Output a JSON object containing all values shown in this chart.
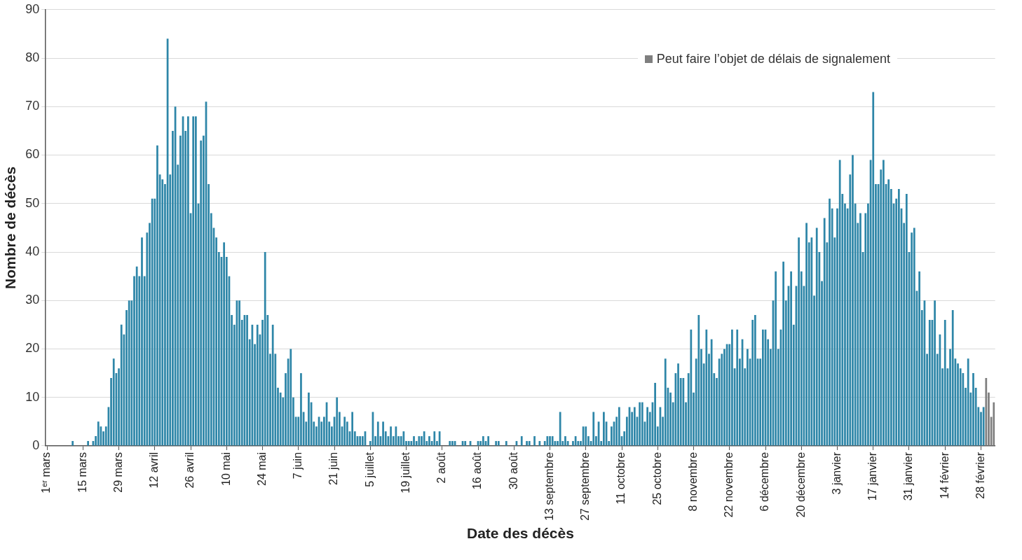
{
  "chart_data": {
    "type": "bar",
    "xlabel": "Date des décès",
    "ylabel": "Nombre de décès",
    "categories": [
      "1ᵉʳ mars",
      null,
      null,
      null,
      null,
      null,
      null,
      null,
      null,
      null,
      null,
      null,
      null,
      null,
      "15 mars",
      null,
      null,
      null,
      null,
      null,
      null,
      null,
      null,
      null,
      null,
      null,
      null,
      null,
      "29 mars",
      null,
      null,
      null,
      null,
      null,
      null,
      null,
      null,
      null,
      null,
      null,
      null,
      null,
      "12 avril",
      null,
      null,
      null,
      null,
      null,
      null,
      null,
      null,
      null,
      null,
      null,
      null,
      null,
      "26 avril",
      null,
      null,
      null,
      null,
      null,
      null,
      null,
      null,
      null,
      null,
      null,
      null,
      null,
      "10 mai",
      null,
      null,
      null,
      null,
      null,
      null,
      null,
      null,
      null,
      null,
      null,
      null,
      null,
      "24 mai",
      null,
      null,
      null,
      null,
      null,
      null,
      null,
      null,
      null,
      null,
      null,
      null,
      null,
      "7 juin",
      null,
      null,
      null,
      null,
      null,
      null,
      null,
      null,
      null,
      null,
      null,
      null,
      null,
      "21 juin",
      null,
      null,
      null,
      null,
      null,
      null,
      null,
      null,
      null,
      null,
      null,
      null,
      null,
      "5 juillet",
      null,
      null,
      null,
      null,
      null,
      null,
      null,
      null,
      null,
      null,
      null,
      null,
      null,
      "19 juillet",
      null,
      null,
      null,
      null,
      null,
      null,
      null,
      null,
      null,
      null,
      null,
      null,
      null,
      "2 août",
      null,
      null,
      null,
      null,
      null,
      null,
      null,
      null,
      null,
      null,
      null,
      null,
      null,
      "16 août",
      null,
      null,
      null,
      null,
      null,
      null,
      null,
      null,
      null,
      null,
      null,
      null,
      null,
      "30 août",
      null,
      null,
      null,
      null,
      null,
      null,
      null,
      null,
      null,
      null,
      null,
      null,
      null,
      "13 septembre",
      null,
      null,
      null,
      null,
      null,
      null,
      null,
      null,
      null,
      null,
      null,
      null,
      null,
      "27 septembre",
      null,
      null,
      null,
      null,
      null,
      null,
      null,
      null,
      null,
      null,
      null,
      null,
      null,
      "11 octobre",
      null,
      null,
      null,
      null,
      null,
      null,
      null,
      null,
      null,
      null,
      null,
      null,
      null,
      "25 octobre",
      null,
      null,
      null,
      null,
      null,
      null,
      null,
      null,
      null,
      null,
      null,
      null,
      null,
      "8 novembre",
      null,
      null,
      null,
      null,
      null,
      null,
      null,
      null,
      null,
      null,
      null,
      null,
      null,
      "22 novembre",
      null,
      null,
      null,
      null,
      null,
      null,
      null,
      null,
      null,
      null,
      null,
      null,
      null,
      "6 décembre",
      null,
      null,
      null,
      null,
      null,
      null,
      null,
      null,
      null,
      null,
      null,
      null,
      null,
      "20 décembre",
      null,
      null,
      null,
      null,
      null,
      null,
      null,
      null,
      null,
      null,
      null,
      null,
      null,
      "3 janvier",
      null,
      null,
      null,
      null,
      null,
      null,
      null,
      null,
      null,
      null,
      null,
      null,
      null,
      "17 janvier",
      null,
      null,
      null,
      null,
      null,
      null,
      null,
      null,
      null,
      null,
      null,
      null,
      null,
      "31 janvier",
      null,
      null,
      null,
      null,
      null,
      null,
      null,
      null,
      null,
      null,
      null,
      null,
      null,
      "14 février",
      null,
      null,
      null,
      null,
      null,
      null,
      null,
      null,
      null,
      null,
      null,
      null,
      null,
      "28 février",
      null,
      null,
      null,
      null,
      null
    ],
    "series": [
      {
        "color": "#2e86a8",
        "values": [
          0,
          0,
          0,
          0,
          0,
          0,
          0,
          0,
          0,
          0,
          1,
          0,
          0,
          0,
          0,
          0,
          1,
          0,
          1,
          2,
          5,
          4,
          3,
          4,
          8,
          14,
          18,
          15,
          16,
          25,
          23,
          28,
          30,
          30,
          35,
          37,
          35,
          43,
          35,
          44,
          46,
          51,
          51,
          62,
          56,
          55,
          54,
          84,
          56,
          65,
          70,
          58,
          64,
          68,
          65,
          68,
          48,
          68,
          68,
          50,
          63,
          64,
          71,
          54,
          48,
          45,
          43,
          40,
          39,
          42,
          39,
          35,
          27,
          25,
          30,
          30,
          26,
          27,
          27,
          22,
          25,
          21,
          25,
          23,
          26,
          40,
          27,
          19,
          25,
          19,
          12,
          11,
          10,
          15,
          18,
          20,
          10,
          6,
          6,
          15,
          7,
          5,
          11,
          9,
          5,
          4,
          6,
          5,
          6,
          9,
          5,
          4,
          6,
          10,
          7,
          4,
          6,
          5,
          3,
          7,
          3,
          2,
          2,
          2,
          3,
          0,
          1,
          7,
          2,
          5,
          2,
          5,
          3,
          2,
          4,
          2,
          4,
          2,
          2,
          3,
          1,
          1,
          1,
          2,
          1,
          2,
          2,
          3,
          1,
          2,
          1,
          3,
          1,
          3,
          0,
          0,
          0,
          1,
          1,
          1,
          0,
          0,
          1,
          1,
          0,
          1,
          0,
          0,
          1,
          1,
          2,
          1,
          2,
          0,
          0,
          1,
          1,
          0,
          0,
          1,
          0,
          0,
          0,
          1,
          0,
          2,
          0,
          1,
          1,
          0,
          2,
          0,
          1,
          0,
          1,
          2,
          2,
          2,
          1,
          1,
          7,
          1,
          2,
          1,
          0,
          1,
          2,
          1,
          1,
          4,
          4,
          2,
          1,
          7,
          2,
          5,
          1,
          7,
          5,
          1,
          4,
          5,
          6,
          8,
          2,
          3,
          6,
          8,
          7,
          8,
          6,
          9,
          9,
          5,
          8,
          7,
          9,
          13,
          4,
          8,
          6,
          18,
          12,
          11,
          9,
          15,
          17,
          14,
          14,
          9,
          15,
          24,
          11,
          18,
          27,
          20,
          17,
          24,
          19,
          22,
          15,
          14,
          18,
          19,
          20,
          21,
          21,
          24,
          16,
          24,
          18,
          22,
          16,
          20,
          18,
          26,
          27,
          18,
          18,
          24,
          24,
          22,
          20,
          30,
          36,
          20,
          24,
          38,
          30,
          33,
          36,
          25,
          33,
          43,
          36,
          33,
          46,
          42,
          43,
          31,
          45,
          40,
          34,
          47,
          42,
          51,
          49,
          43,
          49,
          59,
          52,
          50,
          49,
          56,
          60,
          50,
          46,
          48,
          40,
          48,
          50,
          59,
          73,
          54,
          54,
          57,
          59,
          54,
          55,
          53,
          50,
          51,
          53,
          49,
          46,
          52,
          40,
          44,
          45,
          32,
          36,
          28,
          30,
          19,
          26,
          26,
          30,
          19,
          23,
          16,
          26,
          16,
          20,
          28,
          18,
          17,
          16,
          15,
          12,
          18,
          11,
          15,
          12,
          8,
          7,
          8,
          null,
          null,
          null,
          null
        ]
      },
      {
        "name": "Peut faire l’objet de délais de signalement",
        "color": "#7f7f7f",
        "values": [
          null,
          null,
          null,
          null,
          null,
          null,
          null,
          null,
          null,
          null,
          null,
          null,
          null,
          null,
          null,
          null,
          null,
          null,
          null,
          null,
          null,
          null,
          null,
          null,
          null,
          null,
          null,
          null,
          null,
          null,
          null,
          null,
          null,
          null,
          null,
          null,
          null,
          null,
          null,
          null,
          null,
          null,
          null,
          null,
          null,
          null,
          null,
          null,
          null,
          null,
          null,
          null,
          null,
          null,
          null,
          null,
          null,
          null,
          null,
          null,
          null,
          null,
          null,
          null,
          null,
          null,
          null,
          null,
          null,
          null,
          null,
          null,
          null,
          null,
          null,
          null,
          null,
          null,
          null,
          null,
          null,
          null,
          null,
          null,
          null,
          null,
          null,
          null,
          null,
          null,
          null,
          null,
          null,
          null,
          null,
          null,
          null,
          null,
          null,
          null,
          null,
          null,
          null,
          null,
          null,
          null,
          null,
          null,
          null,
          null,
          null,
          null,
          null,
          null,
          null,
          null,
          null,
          null,
          null,
          null,
          null,
          null,
          null,
          null,
          null,
          null,
          null,
          null,
          null,
          null,
          null,
          null,
          null,
          null,
          null,
          null,
          null,
          null,
          null,
          null,
          null,
          null,
          null,
          null,
          null,
          null,
          null,
          null,
          null,
          null,
          null,
          null,
          null,
          null,
          null,
          null,
          null,
          null,
          null,
          null,
          null,
          null,
          null,
          null,
          null,
          null,
          null,
          null,
          null,
          null,
          null,
          null,
          null,
          null,
          null,
          null,
          null,
          null,
          null,
          null,
          null,
          null,
          null,
          null,
          null,
          null,
          null,
          null,
          null,
          null,
          null,
          null,
          null,
          null,
          null,
          null,
          null,
          null,
          null,
          null,
          null,
          null,
          null,
          null,
          null,
          null,
          null,
          null,
          null,
          null,
          null,
          null,
          null,
          null,
          null,
          null,
          null,
          null,
          null,
          null,
          null,
          null,
          null,
          null,
          null,
          null,
          null,
          null,
          null,
          null,
          null,
          null,
          null,
          null,
          null,
          null,
          null,
          null,
          null,
          null,
          null,
          null,
          null,
          null,
          null,
          null,
          null,
          null,
          null,
          null,
          null,
          null,
          null,
          null,
          null,
          null,
          null,
          null,
          null,
          null,
          null,
          null,
          null,
          null,
          null,
          null,
          null,
          null,
          null,
          null,
          null,
          null,
          null,
          null,
          null,
          null,
          null,
          null,
          null,
          null,
          null,
          null,
          null,
          null,
          null,
          null,
          null,
          null,
          null,
          null,
          null,
          null,
          null,
          null,
          null,
          null,
          null,
          null,
          null,
          null,
          null,
          null,
          null,
          null,
          null,
          null,
          null,
          null,
          null,
          null,
          null,
          null,
          null,
          null,
          null,
          null,
          null,
          null,
          null,
          null,
          null,
          null,
          null,
          null,
          null,
          null,
          null,
          null,
          null,
          null,
          null,
          null,
          null,
          null,
          null,
          null,
          null,
          null,
          null,
          null,
          null,
          null,
          null,
          null,
          null,
          null,
          null,
          null,
          null,
          null,
          null,
          null,
          null,
          null,
          null,
          null,
          null,
          null,
          null,
          null,
          null,
          null,
          null,
          null,
          null,
          null,
          14,
          11,
          6,
          9
        ]
      }
    ],
    "ylim": [
      0,
      90
    ],
    "yticks": [
      0,
      10,
      20,
      30,
      40,
      50,
      60,
      70,
      80,
      90
    ],
    "grid": "y",
    "legend": "top right"
  }
}
